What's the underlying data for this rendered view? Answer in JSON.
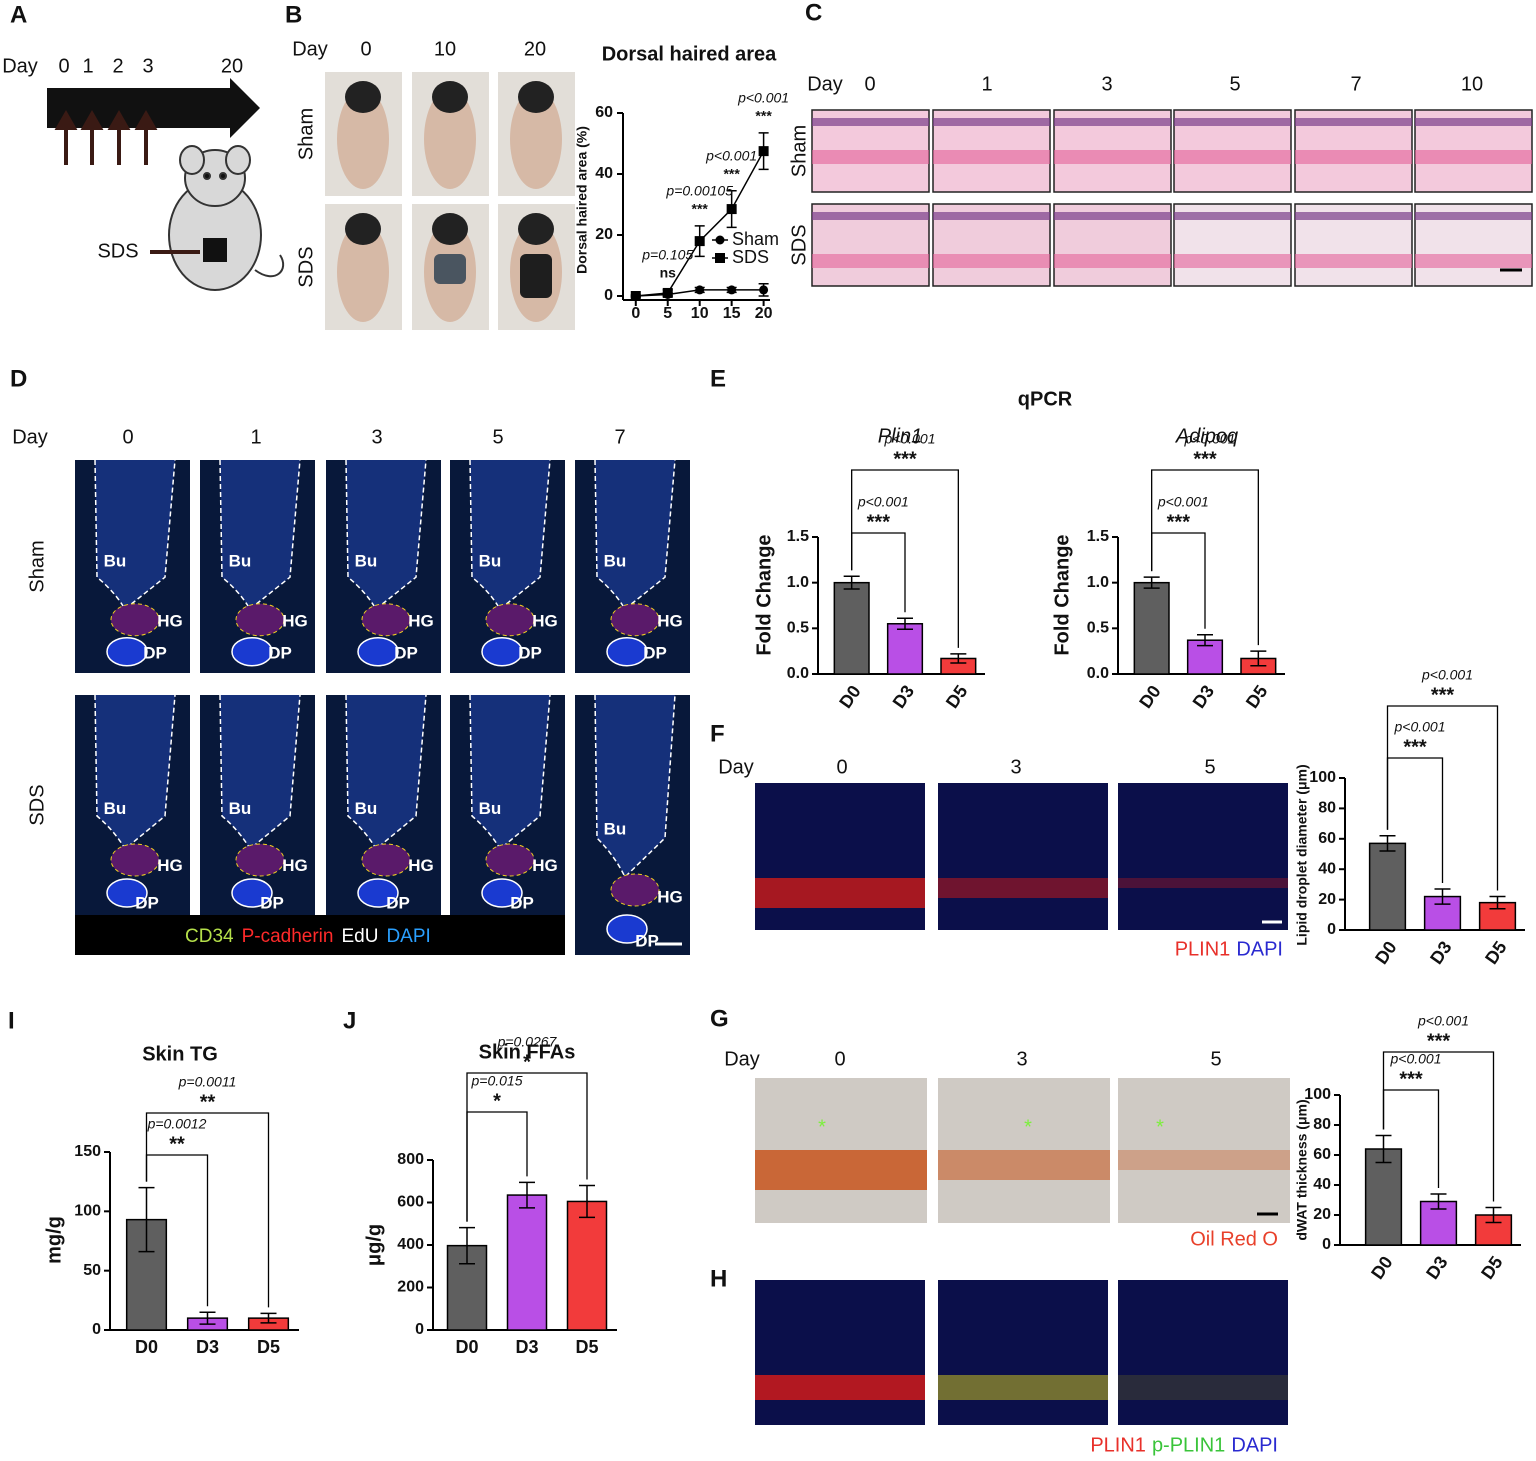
{
  "figure": {
    "A": {
      "letter": "A",
      "day_label": "Day",
      "days": [
        "0",
        "1",
        "2",
        "3",
        "20"
      ],
      "site": "SDS"
    },
    "B": {
      "letter": "B",
      "day_label": "Day",
      "days": [
        "0",
        "10",
        "20"
      ],
      "rows": [
        "Sham",
        "SDS"
      ]
    },
    "C": {
      "letter": "C",
      "day_label": "Day",
      "days": [
        "0",
        "1",
        "3",
        "5",
        "7",
        "10"
      ],
      "rows": [
        "Sham",
        "SDS"
      ]
    },
    "D": {
      "letter": "D",
      "day_label": "Day",
      "days": [
        "0",
        "1",
        "3",
        "5",
        "7"
      ],
      "rows": [
        "Sham",
        "SDS"
      ],
      "structures": [
        "Bu",
        "HG",
        "DP"
      ],
      "stains": [
        {
          "text": "CD34",
          "color": "#b5e04a"
        },
        {
          "text": "P-cadherin",
          "color": "#ff2a2a"
        },
        {
          "text": "EdU",
          "color": "#ffffff"
        },
        {
          "text": "DAPI",
          "color": "#2aa0ff"
        }
      ]
    },
    "E": {
      "letter": "E",
      "title": "qPCR"
    },
    "F": {
      "letter": "F",
      "day_label": "Day",
      "days": [
        "0",
        "3",
        "5"
      ],
      "stains": [
        {
          "text": "PLIN1",
          "color": "#e8302a"
        },
        {
          "text": "DAPI",
          "color": "#2a2ad0"
        }
      ]
    },
    "G": {
      "letter": "G",
      "day_label": "Day",
      "days": [
        "0",
        "3",
        "5"
      ],
      "marker": "*",
      "stains": [
        {
          "text": "Oil Red O",
          "color": "#e8402a"
        }
      ]
    },
    "H": {
      "letter": "H",
      "stains": [
        {
          "text": "PLIN1",
          "color": "#e8302a"
        },
        {
          "text": "p-PLIN1",
          "color": "#3ac43a"
        },
        {
          "text": "DAPI",
          "color": "#2a2ad0"
        }
      ]
    },
    "I": {
      "letter": "I"
    },
    "J": {
      "letter": "J"
    }
  },
  "chart_data": [
    {
      "type": "line",
      "title": "Dorsal haired area",
      "y_label": "Dorsal haired area (%)",
      "x": [
        0,
        5,
        10,
        15,
        20
      ],
      "xlim": [
        -2,
        21
      ],
      "xticks": [
        0,
        5,
        10,
        15,
        20
      ],
      "ylim": [
        0,
        60
      ],
      "yticks": [
        0,
        20,
        40,
        60
      ],
      "series": [
        {
          "name": "Sham",
          "color": "#000000",
          "marker": "circle",
          "values": [
            0,
            0.5,
            2,
            2,
            2
          ],
          "errors": [
            0.3,
            0.5,
            0.8,
            0.8,
            2
          ]
        },
        {
          "name": "SDS",
          "color": "#000000",
          "marker": "square",
          "values": [
            0,
            1,
            18,
            28.5,
            47.5
          ],
          "errors": [
            0.3,
            1,
            5,
            6,
            6
          ]
        }
      ],
      "annotations": [
        {
          "p": "p=0.105",
          "stars": "ns"
        },
        {
          "p": "p=0.00105",
          "stars": "***"
        },
        {
          "p": "p<0.001",
          "stars": "***"
        },
        {
          "p": "p<0.001",
          "stars": "***"
        }
      ]
    },
    {
      "type": "bar",
      "title": "Plin1",
      "y_label": "Fold Change",
      "categories": [
        "D0",
        "D3",
        "D5"
      ],
      "values": [
        1.0,
        0.55,
        0.17
      ],
      "errors": [
        0.07,
        0.06,
        0.05
      ],
      "colors": [
        "#5f5f5f",
        "#b94fe6",
        "#f23b3b"
      ],
      "ylim": [
        0,
        1.5
      ],
      "yticks": [
        {
          "value": 0,
          "label": "0.0"
        },
        {
          "value": 0.5,
          "label": "0.5"
        },
        {
          "value": 1,
          "label": "1.0"
        },
        {
          "value": 1.5,
          "label": "1.5"
        }
      ],
      "comparisons": [
        {
          "p": "p<0.001",
          "stars": "***"
        },
        {
          "p": "p<0.001",
          "stars": "***"
        }
      ]
    },
    {
      "type": "bar",
      "title": "Adipoq",
      "y_label": "Fold Change",
      "categories": [
        "D0",
        "D3",
        "D5"
      ],
      "values": [
        1.0,
        0.37,
        0.17
      ],
      "errors": [
        0.06,
        0.06,
        0.08
      ],
      "colors": [
        "#5f5f5f",
        "#b94fe6",
        "#f23b3b"
      ],
      "ylim": [
        0,
        1.5
      ],
      "yticks": [
        {
          "value": 0,
          "label": "0.0"
        },
        {
          "value": 0.5,
          "label": "0.5"
        },
        {
          "value": 1,
          "label": "1.0"
        },
        {
          "value": 1.5,
          "label": "1.5"
        }
      ],
      "comparisons": [
        {
          "p": "p<0.001",
          "stars": "***"
        },
        {
          "p": "p<0.001",
          "stars": "***"
        }
      ]
    },
    {
      "type": "bar",
      "y_label": "Lipid droplet diameter (μm)",
      "categories": [
        "D0",
        "D3",
        "D5"
      ],
      "values": [
        57,
        22,
        18
      ],
      "errors": [
        5,
        5,
        4
      ],
      "colors": [
        "#5f5f5f",
        "#b94fe6",
        "#f23b3b"
      ],
      "ylim": [
        0,
        100
      ],
      "yticks": [
        0,
        20,
        40,
        60,
        80,
        100
      ],
      "comparisons": [
        {
          "p": "p<0.001",
          "stars": "***"
        },
        {
          "p": "p<0.001",
          "stars": "***"
        }
      ]
    },
    {
      "type": "bar",
      "y_label": "dWAT thickness (μm)",
      "categories": [
        "D0",
        "D3",
        "D5"
      ],
      "values": [
        64,
        29,
        20
      ],
      "errors": [
        9,
        5,
        5
      ],
      "colors": [
        "#5f5f5f",
        "#b94fe6",
        "#f23b3b"
      ],
      "ylim": [
        0,
        100
      ],
      "yticks": [
        0,
        20,
        40,
        60,
        80,
        100
      ],
      "comparisons": [
        {
          "p": "p<0.001",
          "stars": "***"
        },
        {
          "p": "p<0.001",
          "stars": "***"
        }
      ]
    },
    {
      "type": "bar",
      "title": "Skin TG",
      "y_label": "mg/g",
      "categories": [
        "D0",
        "D3",
        "D5"
      ],
      "values": [
        93,
        10,
        10
      ],
      "errors": [
        27,
        5,
        4
      ],
      "colors": [
        "#5f5f5f",
        "#b94fe6",
        "#f23b3b"
      ],
      "ylim": [
        0,
        150
      ],
      "yticks": [
        0,
        50,
        100,
        150
      ],
      "comparisons": [
        {
          "p": "p=0.0012",
          "stars": "**"
        },
        {
          "p": "p=0.0011",
          "stars": "**"
        }
      ]
    },
    {
      "type": "bar",
      "title": "Skin FFAs",
      "y_label": "μg/g",
      "categories": [
        "D0",
        "D3",
        "D5"
      ],
      "values": [
        397,
        635,
        605
      ],
      "errors": [
        85,
        60,
        75
      ],
      "colors": [
        "#5f5f5f",
        "#b94fe6",
        "#f23b3b"
      ],
      "ylim": [
        0,
        800
      ],
      "yticks": [
        0,
        200,
        400,
        600,
        800
      ],
      "comparisons": [
        {
          "p": "p=0.015",
          "stars": "*"
        },
        {
          "p": "p=0.0267",
          "stars": "*"
        }
      ]
    }
  ]
}
